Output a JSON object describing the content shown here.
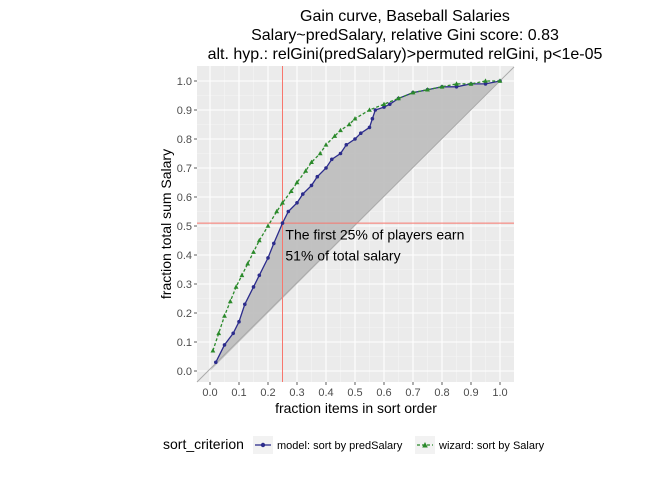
{
  "chart_data": {
    "type": "line",
    "title_lines": [
      "Gain curve, Baseball Salaries",
      "Salary~predSalary, relative Gini score: 0.83",
      "alt. hyp.: relGini(predSalary)>permuted relGini, p<1e-05"
    ],
    "xlabel": "fraction items in sort order",
    "ylabel": "fraction total sum Salary",
    "xlim": [
      0,
      1
    ],
    "ylim": [
      0,
      1
    ],
    "xticks": [
      0.0,
      0.1,
      0.2,
      0.3,
      0.4,
      0.5,
      0.6,
      0.7,
      0.8,
      0.9,
      1.0
    ],
    "xtick_labels": [
      "0.0",
      "0.1",
      "0.2",
      "0.3",
      "0.4",
      "0.5",
      "0.6",
      "0.7",
      "0.8",
      "0.9",
      "1.0"
    ],
    "yticks": [
      0.0,
      0.1,
      0.2,
      0.3,
      0.4,
      0.5,
      0.6,
      0.7,
      0.8,
      0.9,
      1.0
    ],
    "ytick_labels": [
      "0.0",
      "0.1",
      "0.2",
      "0.3",
      "0.4",
      "0.5",
      "0.6",
      "0.7",
      "0.8",
      "0.9",
      "1.0"
    ],
    "grid": true,
    "legend_position": "bottom",
    "legend_title": "sort_criterion",
    "reference_lines": {
      "vertical_x": 0.25,
      "horizontal_y": 0.51,
      "color": "#f8766d"
    },
    "diagonal": {
      "from": [
        0,
        0
      ],
      "to": [
        1,
        1
      ],
      "color": "#aaaaaa"
    },
    "annotation": {
      "lines": [
        "The first 25% of players earn",
        "51% of total salary"
      ],
      "x": 0.26,
      "y": 0.47
    },
    "series": [
      {
        "name": "model: sort by predSalary",
        "color": "#2c2c8c",
        "marker": "circle",
        "x": [
          0.02,
          0.05,
          0.08,
          0.1,
          0.12,
          0.15,
          0.17,
          0.2,
          0.22,
          0.25,
          0.27,
          0.3,
          0.32,
          0.35,
          0.37,
          0.4,
          0.42,
          0.45,
          0.47,
          0.5,
          0.52,
          0.55,
          0.56,
          0.57,
          0.6,
          0.62,
          0.65,
          0.7,
          0.75,
          0.8,
          0.85,
          0.9,
          0.95,
          1.0
        ],
        "y": [
          0.03,
          0.09,
          0.13,
          0.17,
          0.23,
          0.29,
          0.33,
          0.39,
          0.44,
          0.51,
          0.55,
          0.58,
          0.61,
          0.64,
          0.67,
          0.7,
          0.73,
          0.75,
          0.78,
          0.8,
          0.82,
          0.84,
          0.87,
          0.9,
          0.91,
          0.92,
          0.94,
          0.96,
          0.97,
          0.98,
          0.98,
          0.99,
          0.99,
          1.0
        ]
      },
      {
        "name": "wizard: sort by Salary",
        "color": "#2b8a2b",
        "marker": "triangle",
        "x": [
          0.01,
          0.03,
          0.05,
          0.07,
          0.09,
          0.11,
          0.13,
          0.15,
          0.17,
          0.2,
          0.23,
          0.25,
          0.28,
          0.3,
          0.33,
          0.35,
          0.38,
          0.4,
          0.43,
          0.45,
          0.48,
          0.5,
          0.55,
          0.6,
          0.65,
          0.7,
          0.75,
          0.8,
          0.85,
          0.9,
          0.95,
          1.0
        ],
        "y": [
          0.07,
          0.13,
          0.19,
          0.24,
          0.29,
          0.33,
          0.37,
          0.41,
          0.45,
          0.5,
          0.55,
          0.58,
          0.62,
          0.65,
          0.69,
          0.72,
          0.75,
          0.78,
          0.81,
          0.83,
          0.85,
          0.87,
          0.9,
          0.92,
          0.94,
          0.96,
          0.97,
          0.98,
          0.99,
          0.99,
          1.0,
          1.0
        ]
      }
    ]
  }
}
